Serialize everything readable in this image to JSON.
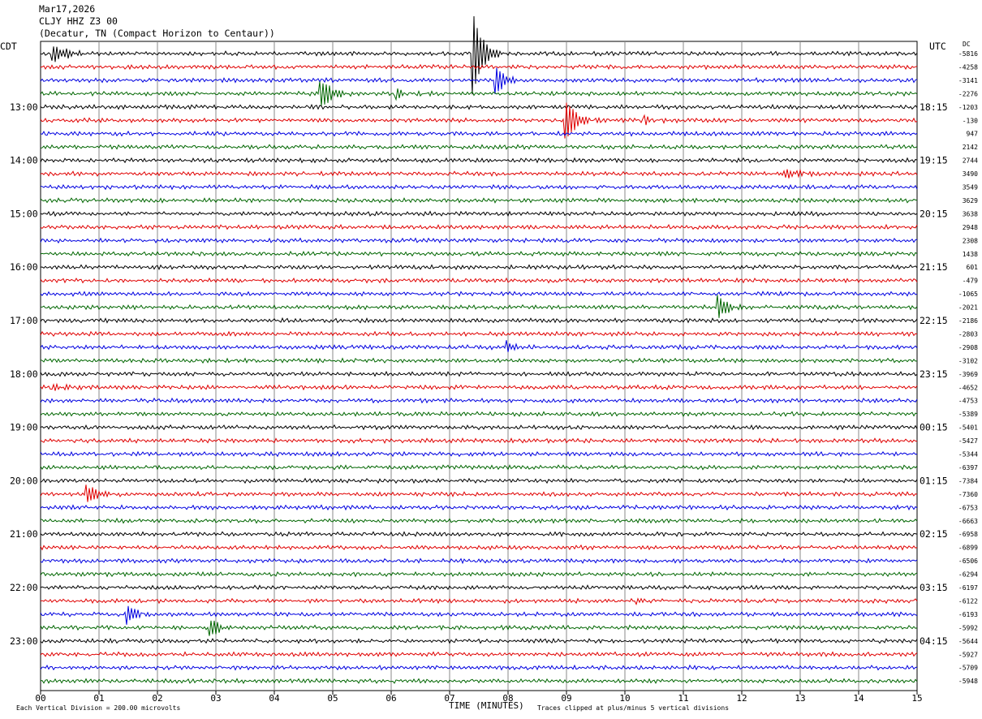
{
  "header": {
    "date": "Mar17,2026",
    "station": "CLJY HHZ Z3 00",
    "location": "(Decatur, TN (Compact Horizon to Centaur))"
  },
  "left_tz": "CDT",
  "right_tz": "UTC",
  "dc_header": "DC",
  "footer": {
    "division_note": "Each Vertical Division =  200.00 microvolts",
    "xlabel": "TIME (MINUTES)",
    "clip_note": "Traces clipped at plus/minus 5 vertical divisions"
  },
  "colors": {
    "row1": "#000000",
    "row2": "#e00000",
    "row3": "#0000e0",
    "row4": "#006600",
    "grid": "#888888"
  },
  "chart_data": {
    "type": "line",
    "title": "",
    "xlabel": "TIME (MINUTES)",
    "xlim": [
      0,
      15
    ],
    "x_ticks": [
      "00",
      "01",
      "02",
      "03",
      "04",
      "05",
      "06",
      "07",
      "08",
      "09",
      "10",
      "11",
      "12",
      "13",
      "14",
      "15"
    ],
    "left_times": [
      "13:00",
      "14:00",
      "15:00",
      "16:00",
      "17:00",
      "18:00",
      "19:00",
      "20:00",
      "21:00",
      "22:00",
      "23:00"
    ],
    "right_times": [
      "18:15",
      "19:15",
      "20:15",
      "21:15",
      "22:15",
      "23:15",
      "00:15",
      "01:15",
      "02:15",
      "03:15",
      "04:15"
    ],
    "dc_offsets": [
      "-5816",
      "-4258",
      "-3141",
      "-2276",
      "-1203",
      "-130",
      "947",
      "2142",
      "2744",
      "3490",
      "3549",
      "3629",
      "3638",
      "2948",
      "2308",
      "1438",
      "601",
      "-479",
      "-1065",
      "-2021",
      "-2186",
      "-2803",
      "-2908",
      "-3102",
      "-3969",
      "-4652",
      "-4753",
      "-5389",
      "-5401",
      "-5427",
      "-5344",
      "-6397",
      "-7384",
      "-7360",
      "-6753",
      "-6663",
      "-6958",
      "-6899",
      "-6506",
      "-6294",
      "-6197",
      "-6122",
      "-6193",
      "-5992",
      "-5644",
      "-5927",
      "-5709",
      "-5948"
    ],
    "trace_count": 48,
    "minutes_per_trace": 15,
    "events": [
      {
        "trace": 0,
        "minute": 7.4,
        "amp": 5
      },
      {
        "trace": 0,
        "minute": 0.2,
        "amp": 3
      },
      {
        "trace": 2,
        "minute": 7.8,
        "amp": 2.2
      },
      {
        "trace": 3,
        "minute": 4.8,
        "amp": 2.2
      },
      {
        "trace": 3,
        "minute": 6.1,
        "amp": 2.5
      },
      {
        "trace": 5,
        "minute": 9.0,
        "amp": 3
      },
      {
        "trace": 5,
        "minute": 10.35,
        "amp": 2.2
      },
      {
        "trace": 9,
        "minute": 12.6,
        "amp": 4
      },
      {
        "trace": 8,
        "minute": 4.2,
        "amp": 1.2
      },
      {
        "trace": 22,
        "minute": 8.0,
        "amp": 1.4
      },
      {
        "trace": 19,
        "minute": 11.6,
        "amp": 1.4
      },
      {
        "trace": 25,
        "minute": 0.2,
        "amp": 1.3
      },
      {
        "trace": 33,
        "minute": 0.8,
        "amp": 1.3
      },
      {
        "trace": 42,
        "minute": 1.5,
        "amp": 1.5
      },
      {
        "trace": 43,
        "minute": 2.9,
        "amp": 1.2
      },
      {
        "trace": 41,
        "minute": 10.2,
        "amp": 1.0
      }
    ]
  }
}
